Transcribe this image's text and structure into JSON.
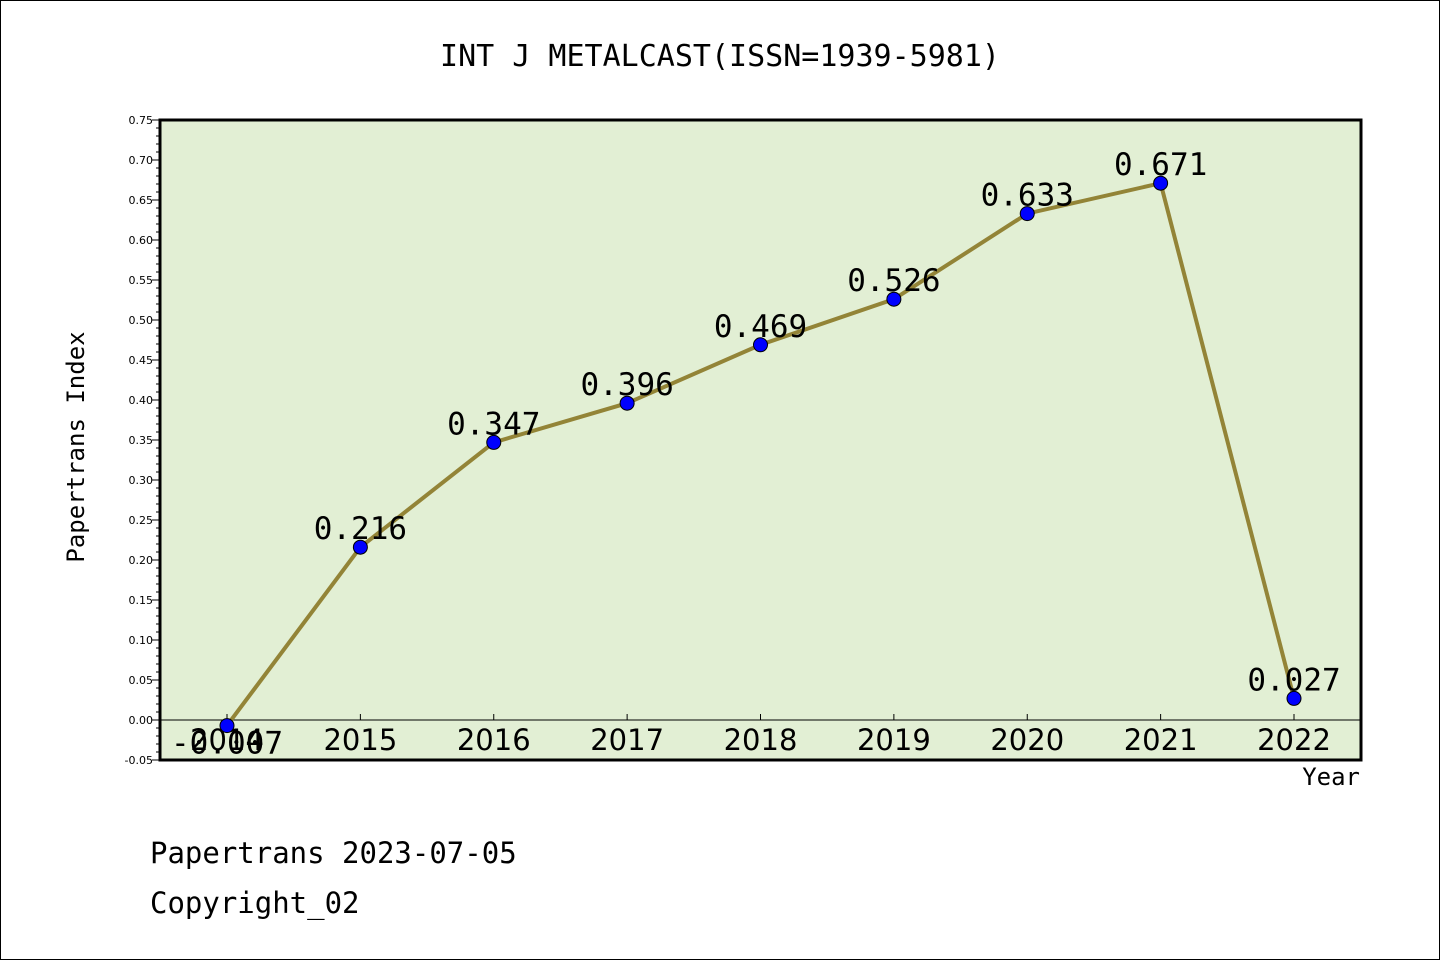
{
  "chart_data": {
    "type": "line",
    "title": "INT J METALCAST(ISSN=1939-5981)",
    "xlabel": "Year",
    "ylabel": "Papertrans Index",
    "ylim": [
      -0.05,
      0.75
    ],
    "yticks": [
      "-0.05",
      "0.00",
      "0.05",
      "0.10",
      "0.15",
      "0.20",
      "0.25",
      "0.30",
      "0.35",
      "0.40",
      "0.45",
      "0.50",
      "0.55",
      "0.60",
      "0.65",
      "0.70",
      "0.75"
    ],
    "categories": [
      "2014",
      "2015",
      "2016",
      "2017",
      "2018",
      "2019",
      "2020",
      "2021",
      "2022"
    ],
    "values": [
      -0.007,
      0.216,
      0.347,
      0.396,
      0.469,
      0.526,
      0.633,
      0.671,
      0.027
    ],
    "value_labels": [
      "-0.007",
      "0.216",
      "0.347",
      "0.396",
      "0.469",
      "0.526",
      "0.633",
      "0.671",
      "0.027"
    ],
    "grid": false,
    "colors": {
      "plot_background": "#e2efd4",
      "line": "#938437",
      "marker": "#0000ff"
    }
  },
  "footer": {
    "line1": "Papertrans 2023-07-05",
    "line2": "Copyright_02"
  }
}
